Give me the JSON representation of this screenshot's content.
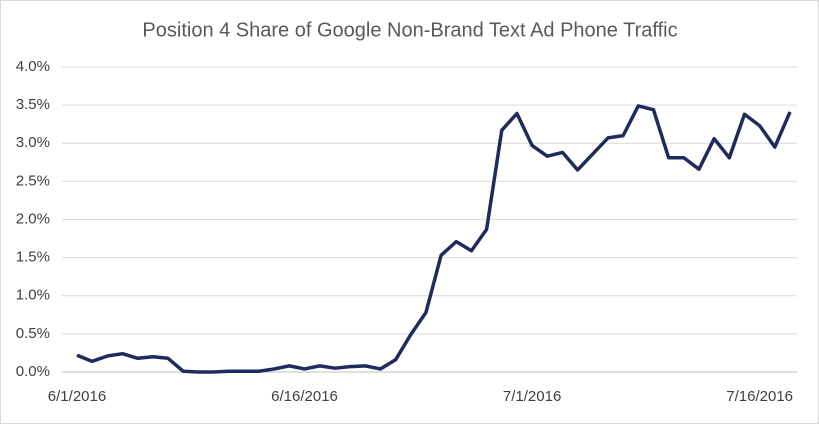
{
  "chart_data": {
    "type": "line",
    "title": "Position 4 Share of Google Non-Brand Text Ad Phone Traffic",
    "categories": [
      "6/1/2016",
      null,
      null,
      null,
      null,
      null,
      null,
      null,
      null,
      null,
      null,
      null,
      null,
      null,
      null,
      "6/16/2016",
      null,
      null,
      null,
      null,
      null,
      null,
      null,
      null,
      null,
      null,
      null,
      null,
      null,
      null,
      "7/1/2016",
      null,
      null,
      null,
      null,
      null,
      null,
      null,
      null,
      null,
      null,
      null,
      null,
      null,
      null,
      "7/16/2016",
      null,
      null
    ],
    "series": [
      {
        "name": "Position 4 Share",
        "color": "#1f2b5c",
        "values": [
          0.22,
          0.14,
          0.21,
          0.24,
          0.18,
          0.2,
          0.18,
          0.01,
          0.0,
          0.0,
          0.01,
          0.01,
          0.01,
          0.04,
          0.08,
          0.04,
          0.08,
          0.05,
          0.07,
          0.08,
          0.04,
          0.16,
          0.49,
          0.78,
          1.53,
          1.71,
          1.59,
          1.87,
          3.17,
          3.39,
          2.97,
          2.83,
          2.88,
          2.65,
          2.86,
          3.07,
          3.1,
          3.49,
          3.44,
          2.81,
          2.81,
          2.66,
          3.06,
          2.81,
          3.38,
          3.23,
          2.95,
          3.41
        ]
      }
    ],
    "ylim": [
      0,
      4
    ],
    "yticks": [
      {
        "value": 0,
        "label": "0.0%"
      },
      {
        "value": 0.5,
        "label": "0.5%"
      },
      {
        "value": 1,
        "label": "1.0%"
      },
      {
        "value": 1.5,
        "label": "1.5%"
      },
      {
        "value": 2,
        "label": "2.0%"
      },
      {
        "value": 2.5,
        "label": "2.5%"
      },
      {
        "value": 3,
        "label": "3.0%"
      },
      {
        "value": 3.5,
        "label": "3.5%"
      },
      {
        "value": 4,
        "label": "4.0%"
      }
    ],
    "grid": true
  }
}
